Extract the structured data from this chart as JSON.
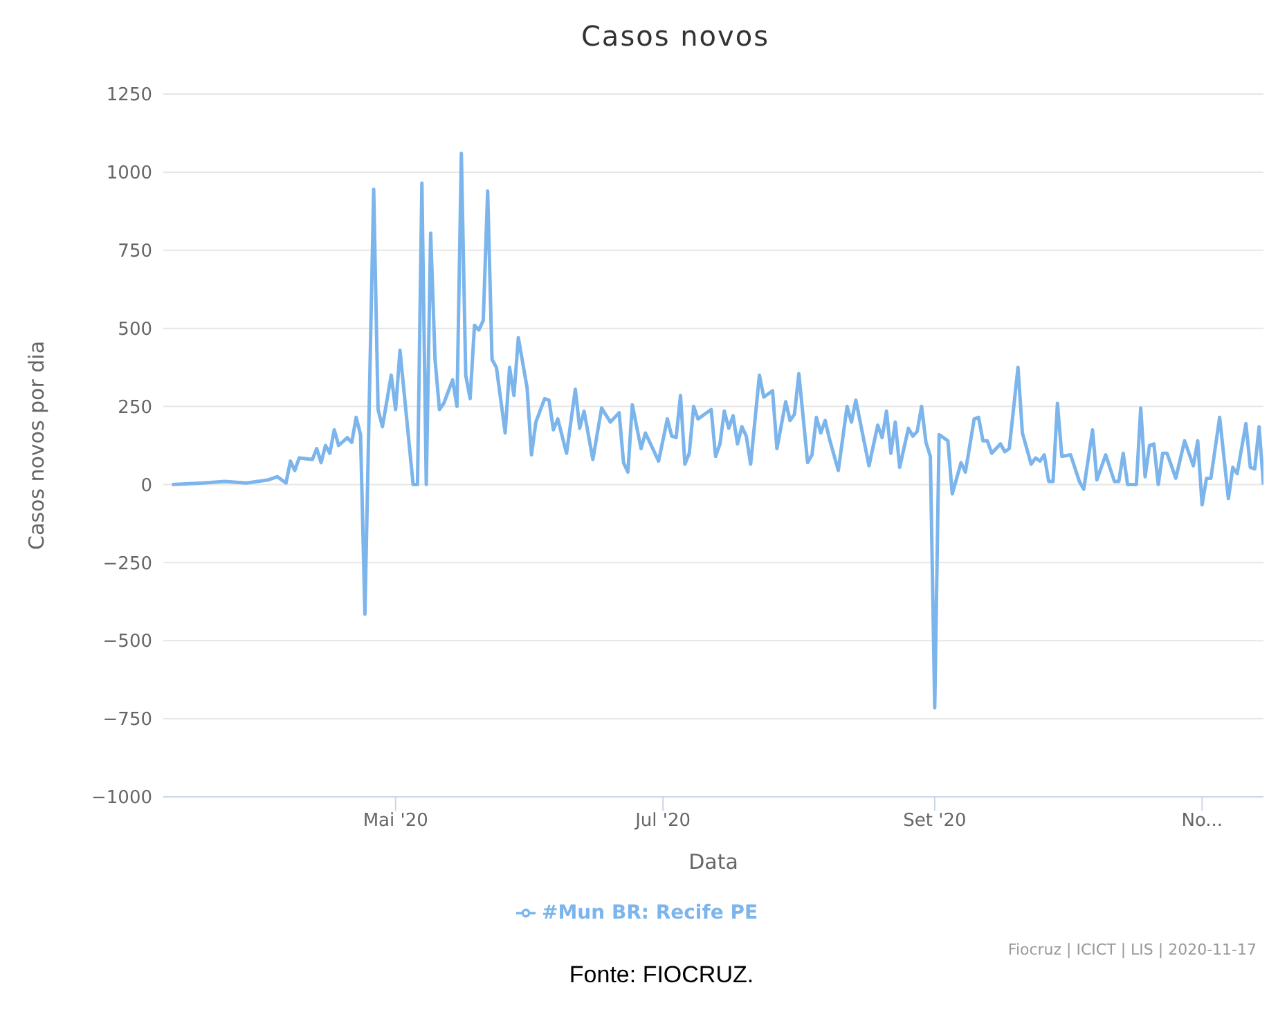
{
  "chart_data": {
    "type": "line",
    "title": "Casos novos",
    "xlabel": "Data",
    "ylabel": "Casos novos por dia",
    "x": [
      "2020-03-11",
      "2020-03-18",
      "2020-03-23",
      "2020-03-28",
      "2020-04-02",
      "2020-04-04",
      "2020-04-06",
      "2020-04-07",
      "2020-04-08",
      "2020-04-09",
      "2020-04-12",
      "2020-04-13",
      "2020-04-14",
      "2020-04-15",
      "2020-04-16",
      "2020-04-17",
      "2020-04-18",
      "2020-04-20",
      "2020-04-21",
      "2020-04-22",
      "2020-04-23",
      "2020-04-24",
      "2020-04-26",
      "2020-04-27",
      "2020-04-28",
      "2020-04-30",
      "2020-05-01",
      "2020-05-02",
      "2020-05-05",
      "2020-05-06",
      "2020-05-07",
      "2020-05-08",
      "2020-05-09",
      "2020-05-10",
      "2020-05-11",
      "2020-05-12",
      "2020-05-14",
      "2020-05-15",
      "2020-05-16",
      "2020-05-17",
      "2020-05-18",
      "2020-05-19",
      "2020-05-20",
      "2020-05-21",
      "2020-05-22",
      "2020-05-23",
      "2020-05-24",
      "2020-05-26",
      "2020-05-27",
      "2020-05-28",
      "2020-05-29",
      "2020-05-31",
      "2020-06-01",
      "2020-06-02",
      "2020-06-04",
      "2020-06-05",
      "2020-06-06",
      "2020-06-07",
      "2020-06-09",
      "2020-06-11",
      "2020-06-12",
      "2020-06-13",
      "2020-06-15",
      "2020-06-17",
      "2020-06-19",
      "2020-06-21",
      "2020-06-22",
      "2020-06-23",
      "2020-06-24",
      "2020-06-26",
      "2020-06-27",
      "2020-06-28",
      "2020-06-30",
      "2020-07-02",
      "2020-07-03",
      "2020-07-04",
      "2020-07-05",
      "2020-07-06",
      "2020-07-07",
      "2020-07-08",
      "2020-07-09",
      "2020-07-12",
      "2020-07-13",
      "2020-07-14",
      "2020-07-15",
      "2020-07-16",
      "2020-07-17",
      "2020-07-18",
      "2020-07-19",
      "2020-07-20",
      "2020-07-21",
      "2020-07-23",
      "2020-07-24",
      "2020-07-26",
      "2020-07-27",
      "2020-07-29",
      "2020-07-30",
      "2020-07-31",
      "2020-08-01",
      "2020-08-03",
      "2020-08-04",
      "2020-08-05",
      "2020-08-06",
      "2020-08-07",
      "2020-08-08",
      "2020-08-10",
      "2020-08-12",
      "2020-08-13",
      "2020-08-14",
      "2020-08-17",
      "2020-08-19",
      "2020-08-20",
      "2020-08-21",
      "2020-08-22",
      "2020-08-23",
      "2020-08-24",
      "2020-08-26",
      "2020-08-27",
      "2020-08-28",
      "2020-08-29",
      "2020-08-30",
      "2020-08-31",
      "2020-09-01",
      "2020-09-02",
      "2020-09-04",
      "2020-09-05",
      "2020-09-07",
      "2020-09-08",
      "2020-09-10",
      "2020-09-11",
      "2020-09-12",
      "2020-09-13",
      "2020-09-14",
      "2020-09-16",
      "2020-09-17",
      "2020-09-18",
      "2020-09-20",
      "2020-09-21",
      "2020-09-23",
      "2020-09-24",
      "2020-09-25",
      "2020-09-26",
      "2020-09-27",
      "2020-09-28",
      "2020-09-29",
      "2020-09-30",
      "2020-10-02",
      "2020-10-04",
      "2020-10-05",
      "2020-10-07",
      "2020-10-08",
      "2020-10-10",
      "2020-10-12",
      "2020-10-13",
      "2020-10-14",
      "2020-10-15",
      "2020-10-17",
      "2020-10-18",
      "2020-10-19",
      "2020-10-20",
      "2020-10-21",
      "2020-10-22",
      "2020-10-23",
      "2020-10-24",
      "2020-10-26",
      "2020-10-28",
      "2020-10-30",
      "2020-10-31",
      "2020-11-01",
      "2020-11-02",
      "2020-11-03",
      "2020-11-05",
      "2020-11-07",
      "2020-11-08",
      "2020-11-09",
      "2020-11-11",
      "2020-11-12",
      "2020-11-13",
      "2020-11-14",
      "2020-11-15"
    ],
    "series": [
      {
        "name": "#Mun BR: Recife PE",
        "color": "#7cb5ec",
        "values": [
          0,
          5,
          10,
          5,
          15,
          25,
          5,
          75,
          45,
          85,
          80,
          115,
          70,
          125,
          100,
          175,
          125,
          150,
          135,
          215,
          160,
          -415,
          945,
          240,
          185,
          350,
          240,
          430,
          0,
          0,
          965,
          0,
          805,
          400,
          240,
          260,
          335,
          250,
          1060,
          350,
          275,
          510,
          495,
          525,
          940,
          400,
          375,
          165,
          375,
          285,
          470,
          310,
          95,
          200,
          275,
          270,
          175,
          210,
          100,
          305,
          180,
          235,
          80,
          245,
          200,
          230,
          70,
          40,
          255,
          115,
          165,
          135,
          75,
          210,
          155,
          150,
          285,
          65,
          100,
          250,
          210,
          240,
          90,
          130,
          235,
          180,
          220,
          130,
          185,
          155,
          65,
          350,
          280,
          300,
          115,
          265,
          205,
          225,
          355,
          70,
          95,
          215,
          165,
          205,
          145,
          45,
          250,
          200,
          270,
          60,
          190,
          150,
          235,
          100,
          200,
          55,
          180,
          155,
          170,
          250,
          135,
          90,
          -715,
          160,
          140,
          -30,
          70,
          40,
          210,
          215,
          140,
          140,
          100,
          130,
          105,
          115,
          375,
          165,
          65,
          85,
          75,
          95,
          10,
          10,
          260,
          90,
          95,
          10,
          -15,
          175,
          15,
          95,
          10,
          10,
          100,
          0,
          0,
          245,
          25,
          125,
          130,
          0,
          100,
          100,
          20,
          140,
          60,
          140,
          -65,
          20,
          20,
          215,
          -45,
          55,
          35,
          195,
          55,
          50,
          185,
          0
        ]
      }
    ],
    "xlim": [
      "2020-03-09",
      "2020-11-15"
    ],
    "xticks": [
      {
        "value": "2020-05-01",
        "label": "Mai '20"
      },
      {
        "value": "2020-07-01",
        "label": "Jul '20"
      },
      {
        "value": "2020-09-01",
        "label": "Set '20"
      },
      {
        "value": "2020-11-01",
        "label": "No..."
      }
    ],
    "ylim": [
      -1000,
      1250
    ],
    "yticks": [
      -1000,
      -750,
      -500,
      -250,
      0,
      250,
      500,
      750,
      1000,
      1250
    ],
    "grid": "y",
    "legend": "bottom",
    "marker": "none",
    "line_style": "solid",
    "annotations": [
      "Fiocruz | ICICT | LIS | 2020-11-17",
      "Fonte: FIOCRUZ."
    ]
  }
}
